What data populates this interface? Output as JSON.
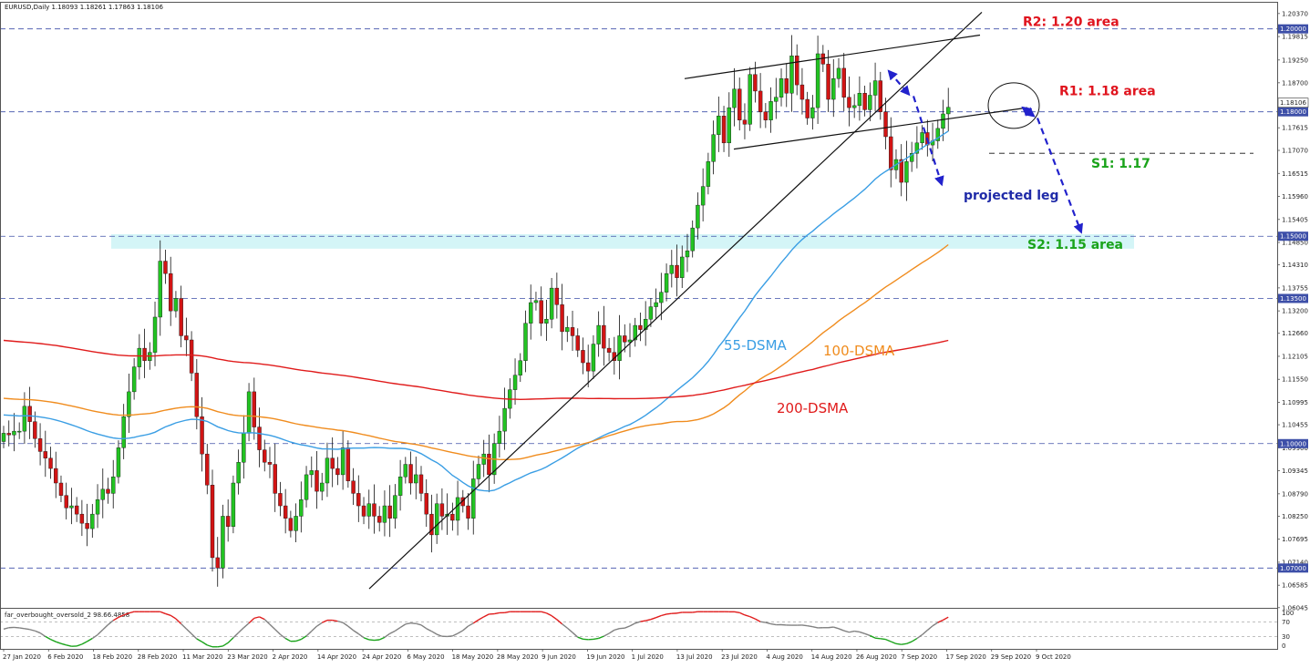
{
  "chart_data": {
    "type": "candlestick",
    "symbol_header": "EURUSD,Daily  1.18093 1.18261 1.17863 1.18106",
    "y_range": [
      1.0604,
      1.2063
    ],
    "y_ticks": [
      "1.20370",
      "1.19815",
      "1.19250",
      "1.18700",
      "1.18145",
      "1.17615",
      "1.17070",
      "1.16515",
      "1.15960",
      "1.15405",
      "1.14850",
      "1.14310",
      "1.13755",
      "1.13200",
      "1.12660",
      "1.12105",
      "1.11550",
      "1.10995",
      "1.10455",
      "1.09900",
      "1.09345",
      "1.08790",
      "1.08250",
      "1.07695",
      "1.07140",
      "1.06585",
      "1.06045"
    ],
    "x_ticks": [
      "27 Jan 2020",
      "6 Feb 2020",
      "18 Feb 2020",
      "28 Feb 2020",
      "11 Mar 2020",
      "23 Mar 2020",
      "2 Apr 2020",
      "14 Apr 2020",
      "24 Apr 2020",
      "6 May 2020",
      "18 May 2020",
      "28 May 2020",
      "9 Jun 2020",
      "19 Jun 2020",
      "1 Jul 2020",
      "13 Jul 2020",
      "23 Jul 2020",
      "4 Aug 2020",
      "14 Aug 2020",
      "26 Aug 2020",
      "7 Sep 2020",
      "17 Sep 2020",
      "29 Sep 2020",
      "9 Oct 2020"
    ],
    "levels": [
      {
        "price": 1.2,
        "label": "R2: 1.20 area",
        "box": "1.20000",
        "color": "#e0141e"
      },
      {
        "price": 1.18,
        "label": "R1: 1.18 area",
        "box": "1.18000",
        "color": "#e0141e"
      },
      {
        "price": 1.15,
        "label": "S2: 1.15 area",
        "box": "1.15000",
        "color": "#1aa31a"
      },
      {
        "price": 1.135,
        "label": "",
        "box": "1.13500",
        "color": ""
      },
      {
        "price": 1.1,
        "label": "",
        "box": "1.10000",
        "color": ""
      },
      {
        "price": 1.07,
        "label": "",
        "box": "1.07000",
        "color": ""
      }
    ],
    "current_price_box": "1.18106",
    "s1_label": "S1: 1.17",
    "s1_price": 1.17,
    "annotation": "projected leg",
    "ma_labels": [
      {
        "text": "55-DSMA",
        "color": "#3a9ee4"
      },
      {
        "text": "100-DSMA",
        "color": "#f08c1e"
      },
      {
        "text": "200-DSMA",
        "color": "#e01b1b"
      }
    ],
    "closes": [
      1.1025,
      1.1021,
      1.103,
      1.103,
      1.109,
      1.1053,
      1.1012,
      1.0981,
      1.0965,
      1.094,
      1.0905,
      1.0875,
      1.0845,
      1.085,
      1.083,
      1.0808,
      1.0795,
      1.083,
      1.0865,
      1.089,
      1.088,
      1.092,
      1.099,
      1.1065,
      1.1125,
      1.1185,
      1.123,
      1.12,
      1.122,
      1.1305,
      1.144,
      1.141,
      1.132,
      1.135,
      1.126,
      1.125,
      1.117,
      1.1065,
      1.0975,
      1.09,
      1.0725,
      1.07,
      1.0825,
      1.08,
      1.0905,
      1.0955,
      1.1025,
      1.1125,
      1.104,
      1.0985,
      1.0955,
      1.095,
      1.088,
      1.085,
      1.082,
      1.079,
      1.0825,
      1.0865,
      1.0925,
      1.0935,
      1.0885,
      1.0905,
      1.0965,
      1.094,
      1.0925,
      1.099,
      1.091,
      1.088,
      1.085,
      1.0825,
      1.0855,
      1.0825,
      1.081,
      1.085,
      1.082,
      1.0875,
      1.092,
      1.095,
      1.0905,
      1.0925,
      1.088,
      1.083,
      1.078,
      1.0855,
      1.0825,
      1.083,
      1.0815,
      1.087,
      1.085,
      1.082,
      1.0915,
      1.095,
      1.0975,
      1.0925,
      1.1,
      1.103,
      1.1085,
      1.113,
      1.1165,
      1.12,
      1.129,
      1.134,
      1.1345,
      1.129,
      1.13,
      1.1375,
      1.1335,
      1.127,
      1.128,
      1.126,
      1.1225,
      1.1195,
      1.1175,
      1.124,
      1.1285,
      1.123,
      1.122,
      1.12,
      1.126,
      1.1245,
      1.125,
      1.1285,
      1.1275,
      1.13,
      1.133,
      1.134,
      1.1365,
      1.141,
      1.143,
      1.14,
      1.145,
      1.1465,
      1.152,
      1.1575,
      1.162,
      1.168,
      1.1745,
      1.179,
      1.1725,
      1.181,
      1.1855,
      1.178,
      1.177,
      1.189,
      1.185,
      1.18,
      1.178,
      1.1825,
      1.1835,
      1.188,
      1.1845,
      1.1935,
      1.1865,
      1.183,
      1.1785,
      1.181,
      1.194,
      1.1915,
      1.183,
      1.188,
      1.1905,
      1.1835,
      1.181,
      1.1815,
      1.1845,
      1.1805,
      1.184,
      1.1875,
      1.18,
      1.174,
      1.166,
      1.1685,
      1.163,
      1.168,
      1.17,
      1.1725,
      1.175,
      1.172,
      1.173,
      1.176,
      1.1795,
      1.1811
    ]
  }
}
